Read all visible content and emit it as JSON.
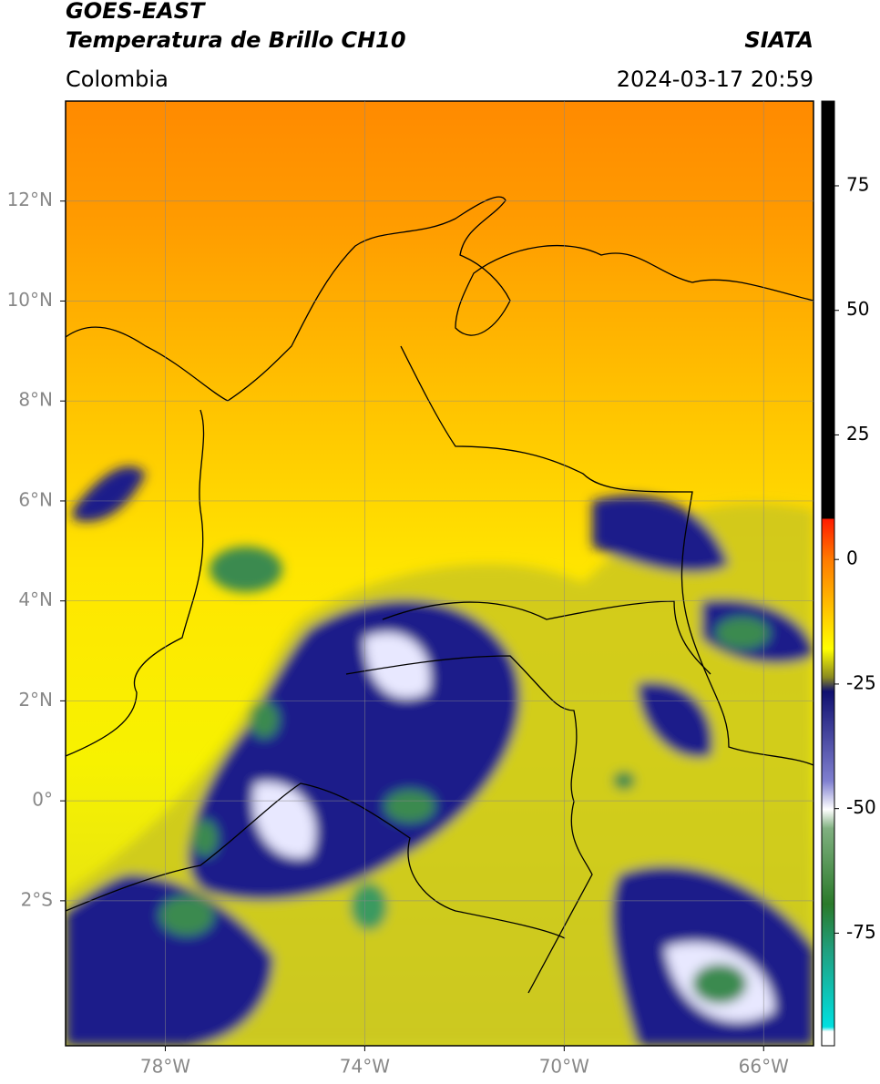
{
  "header": {
    "title": "GOES-EAST",
    "subtitle": "Temperatura de Brillo CH10",
    "source": "SIATA",
    "region": "Colombia",
    "timestamp": "2024-03-17 20:59"
  },
  "map": {
    "xlim": [
      -80,
      -65
    ],
    "ylim": [
      -4.9,
      14
    ],
    "xticks": [
      {
        "value": -78,
        "label": "78°W"
      },
      {
        "value": -74,
        "label": "74°W"
      },
      {
        "value": -70,
        "label": "70°W"
      },
      {
        "value": -66,
        "label": "66°W"
      }
    ],
    "yticks": [
      {
        "value": 12,
        "label": "12°N"
      },
      {
        "value": 10,
        "label": "10°N"
      },
      {
        "value": 8,
        "label": "8°N"
      },
      {
        "value": 6,
        "label": "6°N"
      },
      {
        "value": 4,
        "label": "4°N"
      },
      {
        "value": 2,
        "label": "2°N"
      },
      {
        "value": 0,
        "label": "0°"
      },
      {
        "value": -2,
        "label": "2°S"
      }
    ]
  },
  "colorbar": {
    "lim": [
      -97.6,
      92
    ],
    "ticks": [
      75,
      50,
      25,
      0,
      -25,
      -50,
      -75
    ]
  }
}
